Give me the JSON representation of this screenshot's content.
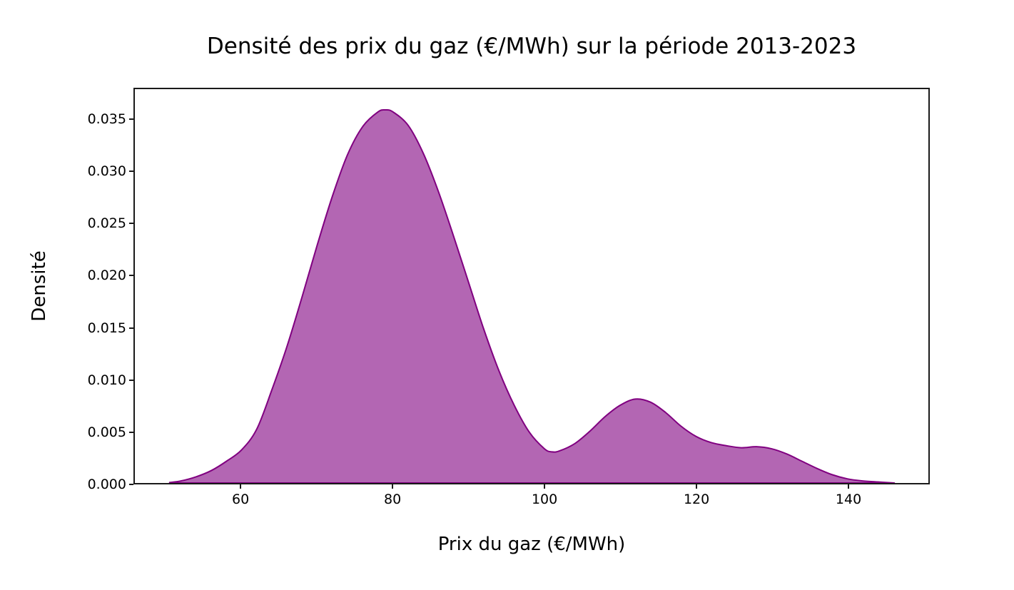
{
  "figure": {
    "title": "Densité des prix du gaz (€/MWh) sur la période 2013-2023",
    "xlabel": "Prix du gaz (€/MWh)",
    "ylabel": "Densité"
  },
  "chart_data": {
    "type": "area",
    "subtype": "kde-density",
    "title": "Densité des prix du gaz (€/MWh) sur la période 2013-2023",
    "xlabel": "Prix du gaz (€/MWh)",
    "ylabel": "Densité",
    "xlim": [
      45.9,
      150.7
    ],
    "ylim": [
      0,
      0.038
    ],
    "x_tick_values": [
      60,
      80,
      100,
      120,
      140
    ],
    "x_tick_labels": [
      "60",
      "80",
      "100",
      "120",
      "140"
    ],
    "y_tick_values": [
      0.0,
      0.005,
      0.01,
      0.015,
      0.02,
      0.025,
      0.03,
      0.035
    ],
    "y_tick_labels": [
      "0.000",
      "0.005",
      "0.010",
      "0.015",
      "0.020",
      "0.025",
      "0.030",
      "0.035"
    ],
    "grid": false,
    "legend": false,
    "fill_color": "#800080",
    "fill_opacity": 0.6,
    "line_color": "#800080",
    "line_width": 2,
    "annotations": {
      "main_peak": {
        "x": 79,
        "density": 0.036
      },
      "valley": {
        "x": 101,
        "density": 0.003
      },
      "secondary_peak": {
        "x": 112,
        "density": 0.0081
      },
      "shoulder_bump": {
        "x": 128,
        "density": 0.0035
      }
    },
    "series": [
      {
        "name": "densité",
        "x": [
          50.5,
          52,
          54,
          56,
          58,
          60,
          62,
          64,
          66,
          68,
          70,
          72,
          74,
          76,
          78,
          79,
          80,
          82,
          84,
          86,
          88,
          90,
          92,
          94,
          96,
          98,
          100,
          101,
          102,
          104,
          106,
          108,
          110,
          112,
          114,
          116,
          118,
          120,
          122,
          124,
          126,
          128,
          130,
          132,
          134,
          136,
          138,
          140,
          142,
          144,
          146.2
        ],
        "y": [
          5e-05,
          0.0002,
          0.0006,
          0.0012,
          0.0021,
          0.0032,
          0.0052,
          0.009,
          0.0132,
          0.018,
          0.023,
          0.0277,
          0.0317,
          0.0344,
          0.0358,
          0.036,
          0.0358,
          0.0345,
          0.0318,
          0.0281,
          0.0238,
          0.0193,
          0.0148,
          0.0108,
          0.0075,
          0.0049,
          0.0033,
          0.003,
          0.0031,
          0.0038,
          0.005,
          0.0064,
          0.0075,
          0.0081,
          0.0078,
          0.0068,
          0.0055,
          0.0045,
          0.0039,
          0.0036,
          0.0034,
          0.0035,
          0.0033,
          0.0028,
          0.0021,
          0.0014,
          0.0008,
          0.0004,
          0.0002,
          0.0001,
          0.0
        ]
      }
    ]
  }
}
